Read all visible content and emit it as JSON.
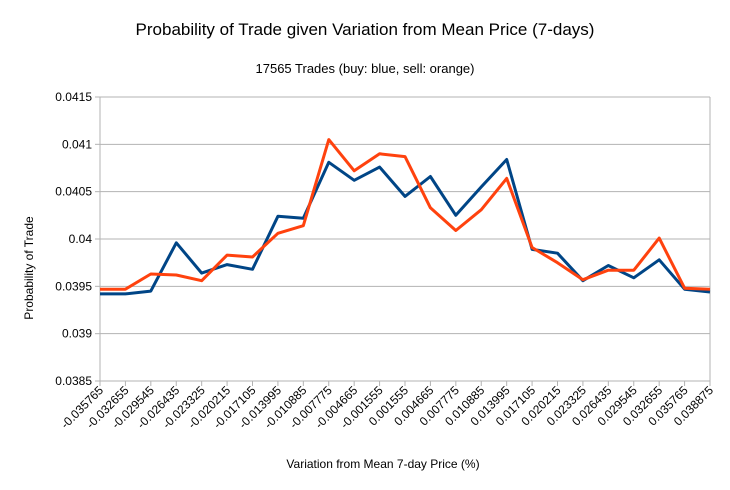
{
  "chart_data": {
    "type": "line",
    "title": "Probability of Trade given Variation from Mean Price (7-days)",
    "subtitle": "17565 Trades (buy: blue, sell: orange)",
    "xlabel": "Variation from Mean 7-day Price (%)",
    "ylabel": "Probability of Trade",
    "categories": [
      "-0.035765",
      "-0.032655",
      "-0.029545",
      "-0.026435",
      "-0.023325",
      "-0.020215",
      "-0.017105",
      "-0.013995",
      "-0.010885",
      "-0.007775",
      "-0.004665",
      "-0.001555",
      "0.001555",
      "0.004665",
      "0.007775",
      "0.010885",
      "0.013995",
      "0.017105",
      "0.020215",
      "0.023325",
      "0.026435",
      "0.029545",
      "0.032655",
      "0.035765",
      "0.038875"
    ],
    "ylim": [
      0.0385,
      0.0415
    ],
    "yticks": [
      "0.0385",
      "0.039",
      "0.0395",
      "0.04",
      "0.0405",
      "0.041",
      "0.0415"
    ],
    "grid": "horizontal",
    "legend": "none",
    "series": [
      {
        "color": "#004586",
        "values": [
          0.03942,
          0.03942,
          0.03945,
          0.03996,
          0.03964,
          0.03973,
          0.03968,
          0.04024,
          0.04022,
          0.04081,
          0.04062,
          0.04076,
          0.04045,
          0.04066,
          0.04025,
          0.04055,
          0.04084,
          0.03989,
          0.03985,
          0.03956,
          0.03972,
          0.03959,
          0.03978,
          0.03947,
          0.03944
        ]
      },
      {
        "color": "#ff420e",
        "values": [
          0.03947,
          0.03947,
          0.03963,
          0.03962,
          0.03956,
          0.03983,
          0.03981,
          0.04006,
          0.04014,
          0.04105,
          0.04072,
          0.0409,
          0.04087,
          0.04033,
          0.04009,
          0.04031,
          0.04064,
          0.03991,
          0.03975,
          0.03957,
          0.03967,
          0.03967,
          0.04001,
          0.03948,
          0.03947
        ]
      }
    ]
  }
}
